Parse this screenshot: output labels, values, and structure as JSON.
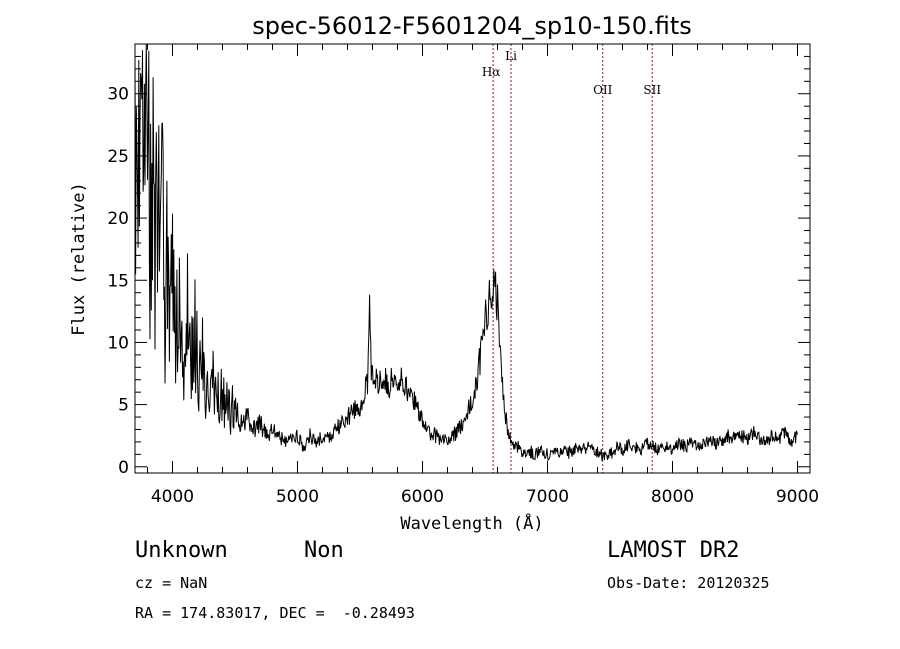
{
  "chart_data": {
    "type": "line",
    "title": "spec-56012-F5601204_sp10-150.fits",
    "xlabel": "Wavelength (Å)",
    "ylabel": "Flux (relative)",
    "xlim": [
      3700,
      9100
    ],
    "ylim": [
      -0.5,
      34
    ],
    "x_ticks": [
      4000,
      5000,
      6000,
      7000,
      8000,
      9000
    ],
    "y_ticks": [
      0,
      5,
      10,
      15,
      20,
      25,
      30
    ],
    "grid": false,
    "series": [
      {
        "line_color": "#000000",
        "x": [
          3700,
          3720,
          3740,
          3760,
          3780,
          3800,
          3820,
          3840,
          3860,
          3880,
          3900,
          3920,
          3940,
          3960,
          3980,
          4000,
          4030,
          4060,
          4090,
          4120,
          4150,
          4180,
          4210,
          4240,
          4270,
          4300,
          4350,
          4400,
          4450,
          4500,
          4550,
          4600,
          4650,
          4700,
          4750,
          4800,
          4850,
          4900,
          4950,
          5000,
          5050,
          5100,
          5150,
          5200,
          5250,
          5300,
          5350,
          5400,
          5450,
          5500,
          5530,
          5560,
          5577,
          5590,
          5620,
          5650,
          5680,
          5710,
          5740,
          5770,
          5800,
          5830,
          5860,
          5890,
          5920,
          5950,
          6000,
          6050,
          6100,
          6150,
          6200,
          6250,
          6300,
          6350,
          6400,
          6450,
          6480,
          6510,
          6530,
          6550,
          6565,
          6580,
          6600,
          6620,
          6640,
          6660,
          6680,
          6700,
          6720,
          6750,
          6800,
          6850,
          6900,
          6950,
          7000,
          7050,
          7100,
          7150,
          7200,
          7250,
          7300,
          7350,
          7400,
          7450,
          7500,
          7550,
          7600,
          7650,
          7700,
          7750,
          7800,
          7850,
          7900,
          7950,
          8000,
          8050,
          8100,
          8150,
          8200,
          8250,
          8300,
          8350,
          8400,
          8450,
          8500,
          8550,
          8600,
          8650,
          8700,
          8750,
          8800,
          8850,
          8900,
          8950,
          9000
        ],
        "y": [
          24,
          31,
          22,
          28,
          20,
          30,
          18,
          26,
          14,
          24,
          17,
          20,
          12,
          19,
          14,
          16,
          11,
          14,
          9,
          12,
          8,
          11,
          7,
          9,
          6,
          7.5,
          5.5,
          6,
          4.5,
          5,
          3.5,
          4,
          3,
          3.5,
          2.5,
          3,
          2.5,
          2,
          2.2,
          2.5,
          1.5,
          2.5,
          1.8,
          2.5,
          2.2,
          3,
          3.5,
          4,
          4.5,
          5,
          6,
          6.5,
          14.5,
          7.5,
          7,
          6.8,
          7.5,
          7,
          6.5,
          7.5,
          6.8,
          7,
          6.5,
          6,
          5.5,
          5,
          3.5,
          2.8,
          2.5,
          2.2,
          2.3,
          2.5,
          3.2,
          4,
          5.5,
          8,
          10,
          12.5,
          13.5,
          14.5,
          15.3,
          14.5,
          13,
          10.5,
          7,
          4.5,
          3,
          2.5,
          2,
          1.7,
          1.2,
          1.3,
          1,
          1.2,
          1,
          1.3,
          1.2,
          1.1,
          1.3,
          1.5,
          1.4,
          1.6,
          1.2,
          0.8,
          1,
          1.5,
          1.4,
          1.7,
          1.5,
          1.5,
          1.8,
          1.7,
          1.3,
          1.6,
          1.5,
          2,
          1.6,
          1.9,
          1.7,
          1.8,
          2.2,
          1.8,
          2.1,
          2.5,
          2.3,
          2.6,
          2.1,
          2.8,
          2.2,
          2,
          2.5,
          2.2,
          2.8,
          2.1,
          2.6
        ]
      }
    ],
    "reference_lines": [
      {
        "label": "Hα",
        "x": 6565
      },
      {
        "label": "Li",
        "x": 6708
      },
      {
        "label": "OII",
        "x": 7442
      },
      {
        "label": "SII",
        "x": 7838
      }
    ],
    "reference_line_color": "#8b1a1a"
  },
  "footer": {
    "class_text": "Unknown",
    "subclass_text": "Non",
    "survey_text": "LAMOST DR2",
    "cz_text": "cz = NaN",
    "obsdate_text": "Obs-Date: 20120325",
    "radec_text": "RA = 174.83017, DEC =  -0.28493"
  }
}
